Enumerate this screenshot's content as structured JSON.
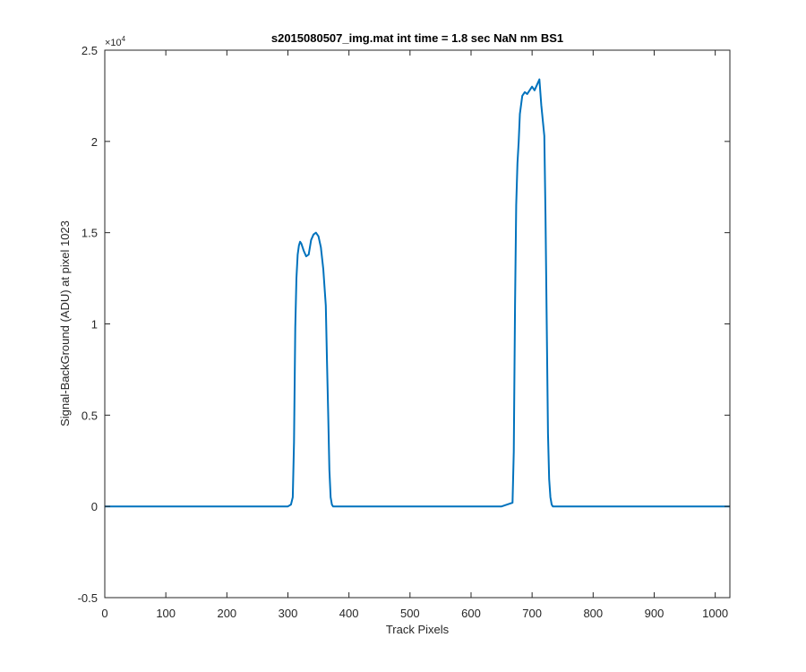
{
  "chart_data": {
    "type": "line",
    "title": "s2015080507_img.mat int time = 1.8 sec  NaN nm BS1",
    "xlabel": "Track Pixels",
    "ylabel": "Signal-BackGround (ADU) at pixel 1023",
    "xlim": [
      0,
      1024
    ],
    "ylim": [
      -5000,
      25000
    ],
    "y_exponent_label": "×10",
    "y_exponent_power": "4",
    "xticks": [
      0,
      100,
      200,
      300,
      400,
      500,
      600,
      700,
      800,
      900,
      1000
    ],
    "xtick_labels": [
      "0",
      "100",
      "200",
      "300",
      "400",
      "500",
      "600",
      "700",
      "800",
      "900",
      "1000"
    ],
    "yticks": [
      -5000,
      0,
      5000,
      10000,
      15000,
      20000,
      25000
    ],
    "ytick_labels": [
      "-0.5",
      "0",
      "0.5",
      "1",
      "1.5",
      "2",
      "2.5"
    ],
    "grid": false,
    "line_color": "#0072BD",
    "series": [
      {
        "x": [
          0,
          50,
          100,
          150,
          200,
          250,
          300,
          305,
          308,
          310,
          312,
          314,
          316,
          318,
          320,
          322,
          326,
          330,
          334,
          338,
          342,
          346,
          350,
          354,
          358,
          362,
          364,
          366,
          368,
          370,
          372,
          374,
          378,
          400,
          450,
          500,
          550,
          600,
          650,
          668,
          670,
          672,
          674,
          676,
          678,
          680,
          684,
          688,
          692,
          696,
          700,
          704,
          708,
          712,
          715,
          718,
          720,
          722,
          724,
          726,
          728,
          730,
          732,
          734,
          740,
          800,
          850,
          900,
          950,
          1000,
          1024
        ],
        "y": [
          0,
          0,
          0,
          0,
          0,
          0,
          0,
          100,
          500,
          3500,
          9800,
          12500,
          13800,
          14300,
          14500,
          14400,
          14000,
          13700,
          13800,
          14600,
          14900,
          15000,
          14800,
          14200,
          13000,
          11000,
          8000,
          5000,
          2000,
          500,
          100,
          0,
          0,
          0,
          0,
          0,
          0,
          0,
          0,
          200,
          3000,
          11000,
          16500,
          18800,
          20000,
          21500,
          22500,
          22700,
          22600,
          22800,
          23000,
          22800,
          23100,
          23400,
          22000,
          21000,
          20300,
          16000,
          10000,
          4000,
          1500,
          500,
          100,
          0,
          0,
          0,
          0,
          0,
          0,
          0,
          0
        ]
      }
    ]
  }
}
